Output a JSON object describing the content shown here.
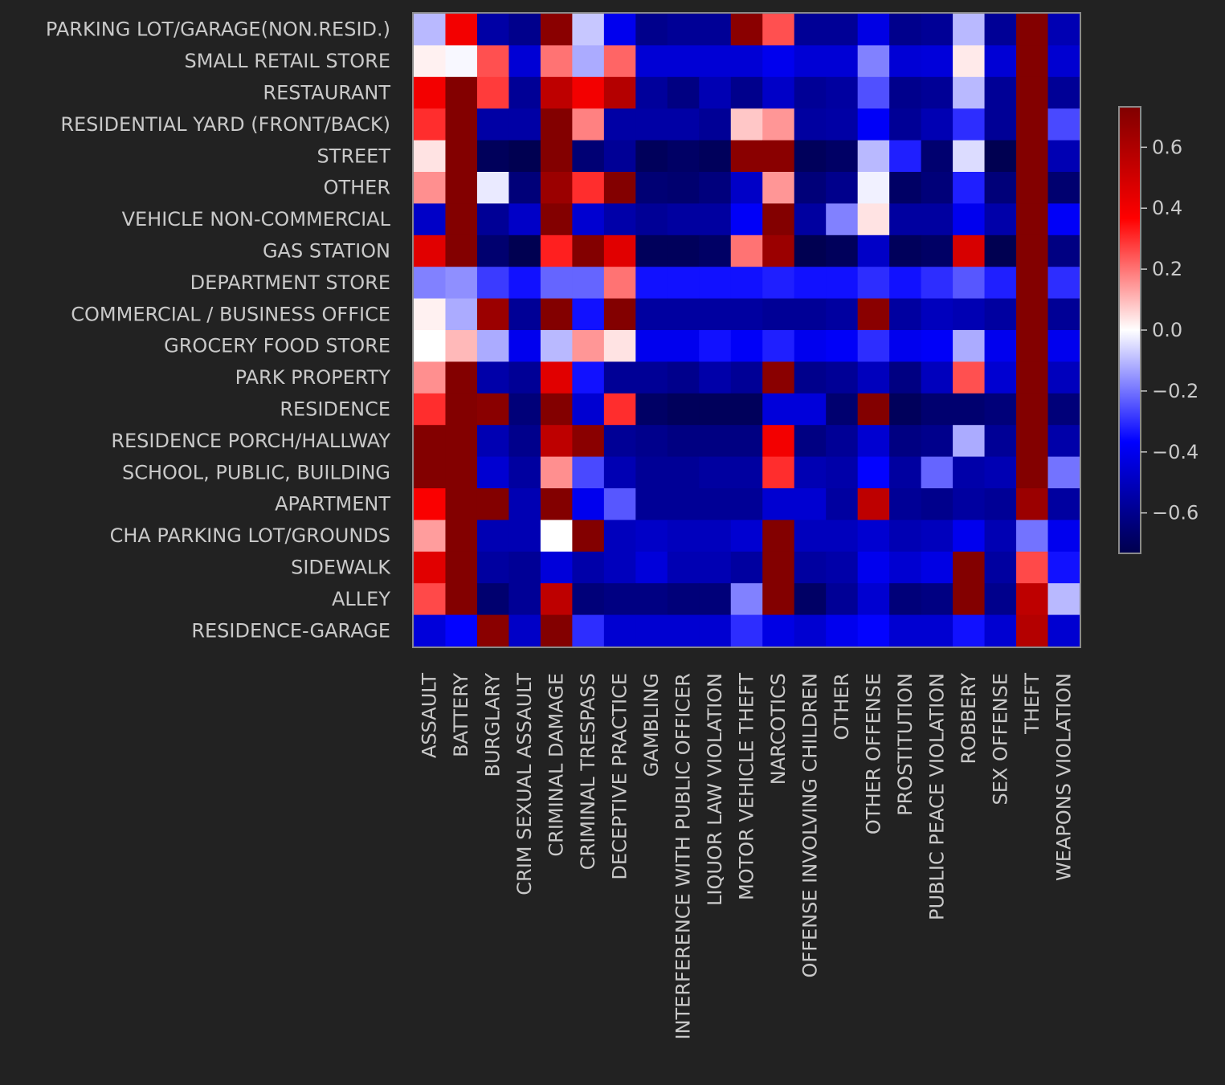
{
  "chart_data": {
    "type": "heatmap",
    "title": "",
    "xlabel": "",
    "ylabel": "",
    "rows": [
      "PARKING LOT/GARAGE(NON.RESID.)",
      "SMALL RETAIL STORE",
      "RESTAURANT",
      "RESIDENTIAL YARD (FRONT/BACK)",
      "STREET",
      "OTHER",
      "VEHICLE NON-COMMERCIAL",
      "GAS STATION",
      "DEPARTMENT STORE",
      "COMMERCIAL / BUSINESS OFFICE",
      "GROCERY FOOD STORE",
      "PARK PROPERTY",
      "RESIDENCE",
      "RESIDENCE PORCH/HALLWAY",
      "SCHOOL, PUBLIC, BUILDING",
      "APARTMENT",
      "CHA PARKING LOT/GROUNDS",
      "SIDEWALK",
      "ALLEY",
      "RESIDENCE-GARAGE"
    ],
    "columns": [
      "ASSAULT",
      "BATTERY",
      "BURGLARY",
      "CRIM SEXUAL ASSAULT",
      "CRIMINAL DAMAGE",
      "CRIMINAL TRESPASS",
      "DECEPTIVE PRACTICE",
      "GAMBLING",
      "INTERFERENCE WITH PUBLIC OFFICER",
      "LIQUOR LAW VIOLATION",
      "MOTOR VEHICLE THEFT",
      "NARCOTICS",
      "OFFENSE INVOLVING CHILDREN",
      "OTHER",
      "OTHER OFFENSE",
      "PROSTITUTION",
      "PUBLIC PEACE VIOLATION",
      "ROBBERY",
      "SEX OFFENSE",
      "THEFT",
      "WEAPONS VIOLATION"
    ],
    "values": [
      [
        -0.1,
        0.4,
        -0.55,
        -0.6,
        0.7,
        -0.08,
        -0.4,
        -0.6,
        -0.58,
        -0.58,
        0.7,
        0.25,
        -0.58,
        -0.58,
        -0.42,
        -0.6,
        -0.58,
        -0.1,
        -0.58,
        0.72,
        -0.52
      ],
      [
        0.02,
        -0.01,
        0.25,
        -0.45,
        0.2,
        -0.12,
        0.22,
        -0.45,
        -0.45,
        -0.45,
        -0.45,
        -0.4,
        -0.45,
        -0.45,
        -0.18,
        -0.45,
        -0.44,
        0.03,
        -0.45,
        0.72,
        -0.46
      ],
      [
        0.4,
        0.72,
        0.28,
        -0.58,
        0.55,
        0.4,
        0.58,
        -0.57,
        -0.62,
        -0.52,
        -0.6,
        -0.48,
        -0.58,
        -0.56,
        -0.25,
        -0.6,
        -0.58,
        -0.1,
        -0.58,
        0.72,
        -0.58
      ],
      [
        0.3,
        0.72,
        -0.55,
        -0.55,
        0.72,
        0.18,
        -0.55,
        -0.55,
        -0.55,
        -0.58,
        0.08,
        0.15,
        -0.56,
        -0.55,
        -0.38,
        -0.58,
        -0.52,
        -0.3,
        -0.58,
        0.72,
        -0.26
      ],
      [
        0.04,
        0.72,
        -0.7,
        -0.72,
        0.72,
        -0.65,
        -0.58,
        -0.7,
        -0.68,
        -0.7,
        0.7,
        0.7,
        -0.7,
        -0.68,
        -0.1,
        -0.32,
        -0.66,
        -0.05,
        -0.72,
        0.72,
        -0.52
      ],
      [
        0.16,
        0.72,
        -0.03,
        -0.64,
        0.65,
        0.3,
        0.72,
        -0.65,
        -0.66,
        -0.63,
        -0.48,
        0.15,
        -0.64,
        -0.6,
        -0.02,
        -0.68,
        -0.64,
        -0.32,
        -0.64,
        0.72,
        -0.66
      ],
      [
        -0.48,
        0.72,
        -0.58,
        -0.48,
        0.72,
        -0.46,
        -0.54,
        -0.58,
        -0.56,
        -0.56,
        -0.38,
        0.72,
        -0.56,
        -0.18,
        0.04,
        -0.56,
        -0.56,
        -0.4,
        -0.54,
        0.72,
        -0.38
      ],
      [
        0.45,
        0.72,
        -0.66,
        -0.72,
        0.32,
        0.72,
        0.45,
        -0.7,
        -0.7,
        -0.68,
        0.2,
        0.65,
        -0.72,
        -0.7,
        -0.48,
        -0.7,
        -0.68,
        0.48,
        -0.72,
        0.72,
        -0.62
      ],
      [
        -0.18,
        -0.16,
        -0.28,
        -0.34,
        -0.22,
        -0.22,
        0.2,
        -0.34,
        -0.34,
        -0.34,
        -0.34,
        -0.32,
        -0.34,
        -0.34,
        -0.3,
        -0.34,
        -0.3,
        -0.24,
        -0.32,
        0.72,
        -0.3
      ],
      [
        0.02,
        -0.12,
        0.65,
        -0.58,
        0.72,
        -0.34,
        0.72,
        -0.56,
        -0.56,
        -0.56,
        -0.56,
        -0.58,
        -0.58,
        -0.56,
        0.7,
        -0.56,
        -0.5,
        -0.52,
        -0.56,
        0.72,
        -0.58
      ],
      [
        0.0,
        0.1,
        -0.12,
        -0.4,
        -0.1,
        0.15,
        0.04,
        -0.4,
        -0.4,
        -0.34,
        -0.38,
        -0.32,
        -0.4,
        -0.38,
        -0.3,
        -0.4,
        -0.38,
        -0.12,
        -0.4,
        0.72,
        -0.4
      ],
      [
        0.16,
        0.72,
        -0.54,
        -0.58,
        0.45,
        -0.34,
        -0.58,
        -0.58,
        -0.6,
        -0.54,
        -0.58,
        0.7,
        -0.6,
        -0.58,
        -0.5,
        -0.62,
        -0.5,
        0.25,
        -0.46,
        0.72,
        -0.5
      ],
      [
        0.3,
        0.72,
        0.7,
        -0.64,
        0.72,
        -0.46,
        0.3,
        -0.68,
        -0.7,
        -0.7,
        -0.7,
        -0.44,
        -0.44,
        -0.66,
        0.72,
        -0.7,
        -0.66,
        -0.66,
        -0.64,
        0.72,
        -0.64
      ],
      [
        0.72,
        0.72,
        -0.52,
        -0.6,
        0.55,
        0.7,
        -0.58,
        -0.6,
        -0.62,
        -0.62,
        -0.62,
        0.4,
        -0.62,
        -0.58,
        -0.46,
        -0.62,
        -0.6,
        -0.12,
        -0.58,
        0.72,
        -0.54
      ],
      [
        0.72,
        0.72,
        -0.46,
        -0.56,
        0.16,
        -0.26,
        -0.52,
        -0.58,
        -0.58,
        -0.56,
        -0.56,
        0.3,
        -0.52,
        -0.54,
        -0.36,
        -0.56,
        -0.22,
        -0.54,
        -0.52,
        0.72,
        -0.2
      ],
      [
        0.38,
        0.72,
        0.72,
        -0.52,
        0.72,
        -0.4,
        -0.24,
        -0.58,
        -0.58,
        -0.58,
        -0.58,
        -0.46,
        -0.46,
        -0.56,
        0.55,
        -0.58,
        -0.6,
        -0.56,
        -0.58,
        0.65,
        -0.56
      ],
      [
        0.14,
        0.72,
        -0.52,
        -0.52,
        0.0,
        0.72,
        -0.5,
        -0.48,
        -0.5,
        -0.5,
        -0.46,
        0.72,
        -0.5,
        -0.5,
        -0.46,
        -0.52,
        -0.5,
        -0.4,
        -0.52,
        -0.2,
        -0.4
      ],
      [
        0.45,
        0.72,
        -0.56,
        -0.58,
        -0.44,
        -0.54,
        -0.5,
        -0.44,
        -0.52,
        -0.52,
        -0.56,
        0.72,
        -0.56,
        -0.54,
        -0.4,
        -0.46,
        -0.42,
        0.72,
        -0.56,
        0.26,
        -0.34
      ],
      [
        0.26,
        0.72,
        -0.66,
        -0.58,
        0.55,
        -0.64,
        -0.62,
        -0.62,
        -0.64,
        -0.64,
        -0.18,
        0.72,
        -0.68,
        -0.58,
        -0.46,
        -0.64,
        -0.62,
        0.72,
        -0.6,
        0.55,
        -0.1
      ],
      [
        -0.44,
        -0.36,
        0.7,
        -0.48,
        0.72,
        -0.3,
        -0.46,
        -0.46,
        -0.46,
        -0.46,
        -0.3,
        -0.42,
        -0.46,
        -0.4,
        -0.36,
        -0.46,
        -0.46,
        -0.34,
        -0.46,
        0.58,
        -0.46
      ]
    ],
    "vmin": -0.73,
    "vmax": 0.73,
    "colormap": "seismic",
    "colorbar": {
      "ticks": [
        0.6,
        0.4,
        0.2,
        0.0,
        -0.2,
        -0.4,
        -0.6
      ],
      "tick_labels": [
        "0.6",
        "0.4",
        "0.2",
        "0.0",
        "−0.2",
        "−0.4",
        "−0.6"
      ],
      "position": "right"
    },
    "grid": false
  },
  "colors": {
    "background": "#222222",
    "text": "#c9c9c9",
    "frame": "#8a8a8a"
  }
}
